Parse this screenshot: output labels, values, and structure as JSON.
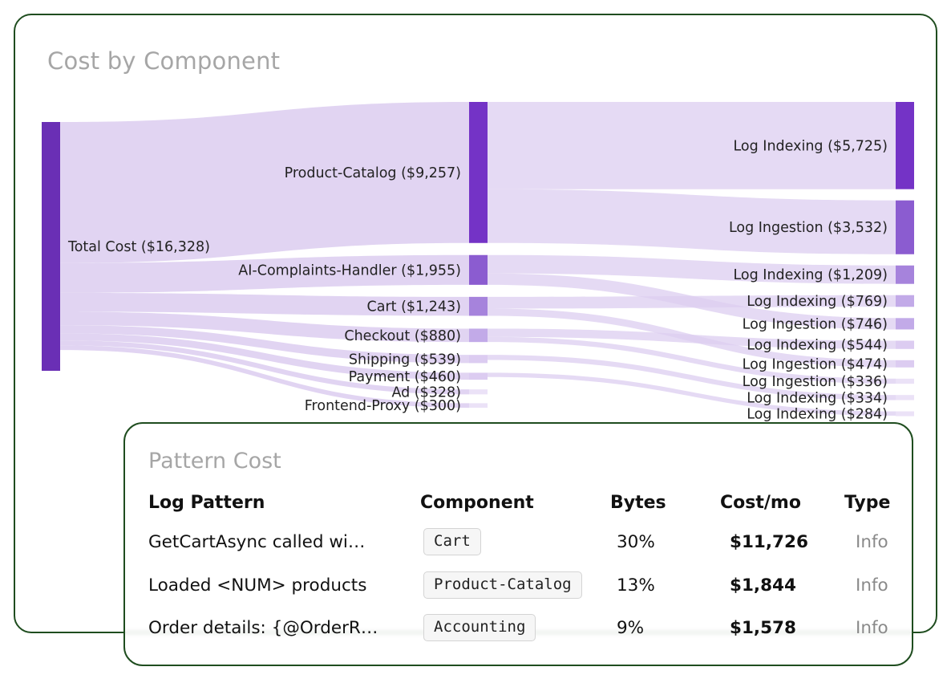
{
  "page": {
    "title": "Cost by Component"
  },
  "chart_data": {
    "type": "sankey",
    "title": "Cost by Component",
    "source": {
      "name": "Total Cost",
      "label": "Total Cost ($16,328)",
      "value": 16328
    },
    "components": [
      {
        "name": "Product-Catalog",
        "label": "Product-Catalog ($9,257)",
        "value": 9257
      },
      {
        "name": "AI-Complaints-Handler",
        "label": "AI-Complaints-Handler ($1,955)",
        "value": 1955
      },
      {
        "name": "Cart",
        "label": "Cart ($1,243)",
        "value": 1243
      },
      {
        "name": "Checkout",
        "label": "Checkout ($880)",
        "value": 880
      },
      {
        "name": "Shipping",
        "label": "Shipping ($539)",
        "value": 539
      },
      {
        "name": "Payment",
        "label": "Payment ($460)",
        "value": 460
      },
      {
        "name": "Ad",
        "label": "Ad ($328)",
        "value": 328
      },
      {
        "name": "Frontend-Proxy",
        "label": "Frontend-Proxy ($300)",
        "value": 300
      }
    ],
    "outcomes": [
      {
        "label": "Log Indexing ($5,725)",
        "value": 5725,
        "from": "Product-Catalog"
      },
      {
        "label": "Log Ingestion ($3,532)",
        "value": 3532,
        "from": "Product-Catalog"
      },
      {
        "label": "Log Indexing ($1,209)",
        "value": 1209,
        "from": "AI-Complaints-Handler"
      },
      {
        "label": "Log Indexing ($769)",
        "value": 769,
        "from": "Cart"
      },
      {
        "label": "Log Ingestion ($746)",
        "value": 746,
        "from": "AI-Complaints-Handler"
      },
      {
        "label": "Log Indexing ($544)",
        "value": 544,
        "from": "Checkout"
      },
      {
        "label": "Log Ingestion ($474)",
        "value": 474,
        "from": "Cart"
      },
      {
        "label": "Log Ingestion ($336)",
        "value": 336,
        "from": "Checkout"
      },
      {
        "label": "Log Indexing ($334)",
        "value": 334,
        "from": "Shipping"
      },
      {
        "label": "Log Indexing ($284)",
        "value": 284,
        "from": "Payment"
      }
    ],
    "colors": {
      "source_node": "#6a2fb5",
      "node_scale": [
        "#7433c6",
        "#8b5cd0",
        "#a683dc",
        "#c2aae8",
        "#dcccf1",
        "#ebe2f7"
      ],
      "link": "#dccdf0"
    }
  },
  "pattern_cost": {
    "title": "Pattern Cost",
    "headers": {
      "pattern": "Log Pattern",
      "component": "Component",
      "bytes": "Bytes",
      "cost": "Cost/mo",
      "type": "Type"
    },
    "rows": [
      {
        "pattern": "GetCartAsync called wi…",
        "component": "Cart",
        "bytes": "30%",
        "cost": "$11,726",
        "type": "Info"
      },
      {
        "pattern": "Loaded <NUM> products",
        "component": "Product-Catalog",
        "bytes": "13%",
        "cost": "$1,844",
        "type": "Info"
      },
      {
        "pattern": "Order details: {@OrderR…",
        "component": "Accounting",
        "bytes": "9%",
        "cost": "$1,578",
        "type": "Info"
      }
    ]
  }
}
